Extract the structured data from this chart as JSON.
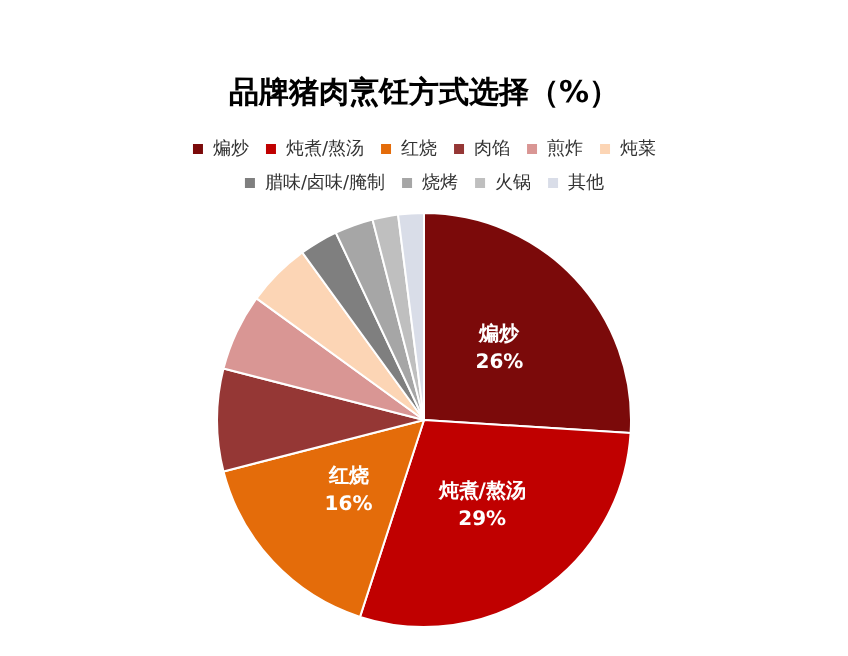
{
  "chart_data": {
    "type": "pie",
    "title": "品牌猪肉烹饪方式选择（%）",
    "categories": [
      "煸炒",
      "炖煮/熬汤",
      "红烧",
      "肉馅",
      "煎炸",
      "炖菜",
      "腊味/卤味/腌制",
      "烧烤",
      "火锅",
      "其他"
    ],
    "values": [
      26,
      29,
      16,
      8,
      6,
      5,
      3,
      3,
      2,
      2
    ],
    "colors": [
      "#7b0a0a",
      "#c00000",
      "#e46c0a",
      "#953735",
      "#d99694",
      "#fcd5b5",
      "#7f7f7f",
      "#a6a6a6",
      "#bfbfbf",
      "#d9dde8"
    ],
    "value_labels": [
      "26%",
      "29%",
      "16%",
      null,
      null,
      null,
      null,
      null,
      null,
      null
    ],
    "legend": "top"
  }
}
